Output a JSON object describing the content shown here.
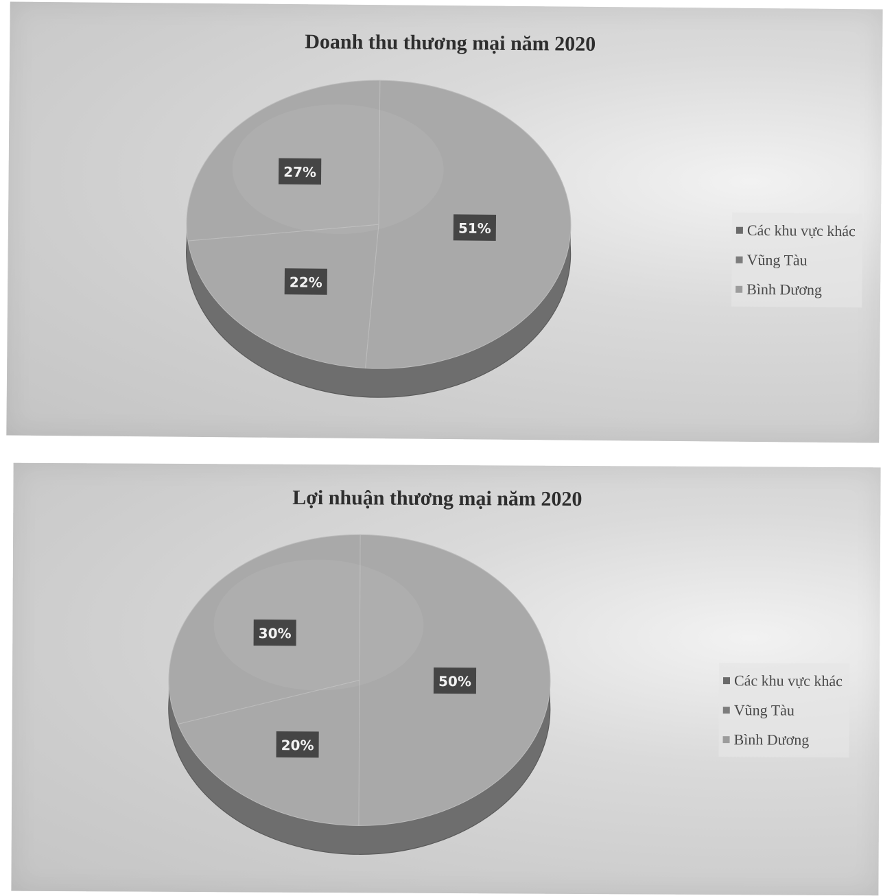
{
  "colors": {
    "pie_top": "#a9a9a9",
    "pie_side": "#6e6e6e",
    "slice_divider": "#bcbcbc",
    "label_box": "#454545",
    "label_text": "#f2f2f2",
    "swatch_1": "#6a6a6a",
    "swatch_2": "#7c7c7c",
    "swatch_3": "#9c9c9c"
  },
  "chart_data": [
    {
      "type": "pie",
      "title": "Doanh thu thương mại năm 2020",
      "categories": [
        "Các khu vực khác",
        "Vũng Tàu",
        "Bình Dương"
      ],
      "values": [
        51,
        22,
        27
      ],
      "data_labels": [
        "51%",
        "22%",
        "27%"
      ],
      "legend": {
        "placement": "right",
        "entries": [
          "Các khu vực khác",
          "Vũng Tàu",
          "Bình Dương"
        ]
      }
    },
    {
      "type": "pie",
      "title": "Lợi nhuận thương mại năm 2020",
      "categories": [
        "Các khu vực khác",
        "Vũng Tàu",
        "Bình Dương"
      ],
      "values": [
        50,
        20,
        30
      ],
      "data_labels": [
        "50%",
        "20%",
        "30%"
      ],
      "legend": {
        "placement": "right",
        "entries": [
          "Các khu vực khác",
          "Vũng Tàu",
          "Bình Dương"
        ]
      }
    }
  ]
}
